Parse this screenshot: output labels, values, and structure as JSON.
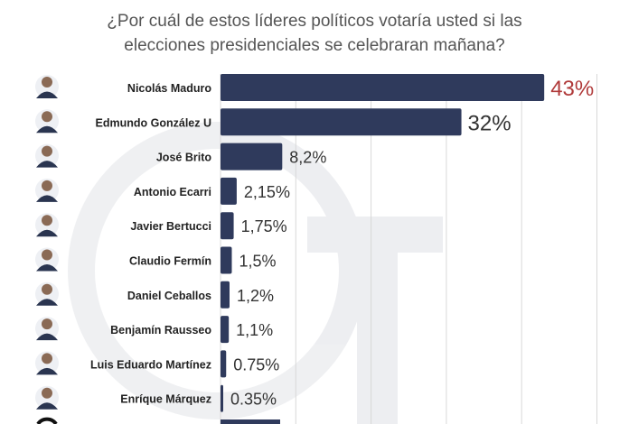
{
  "chart_data": {
    "type": "bar",
    "orientation": "horizontal",
    "title": "¿Por cuál de estos líderes políticos votaría usted si las elecciones presidenciales se celebraran mañana?",
    "title_lines": [
      "¿Por cuál de estos líderes políticos votaría usted si las",
      "elecciones presidenciales se celebraran mañana?"
    ],
    "categories": [
      "Nicolás Maduro",
      "Edmundo González U",
      "José Brito",
      "Antonio Ecarri",
      "Javier Bertucci",
      "Claudio Fermín",
      "Daniel Ceballos",
      "Benjamín Rausseo",
      "Luis Eduardo Martínez",
      "Enríque Márquez"
    ],
    "values": [
      43,
      32,
      8.2,
      2.15,
      1.75,
      1.5,
      1.2,
      1.1,
      0.75,
      0.35
    ],
    "labels": [
      "43%",
      "32%",
      "8,2%",
      "2,15%",
      "1,75%",
      "1,5%",
      "1,2%",
      "1,1%",
      "0.75%",
      "0.35%"
    ],
    "xlim": [
      0,
      50
    ],
    "grid": true,
    "xlabel": "",
    "ylabel": "",
    "colors": {
      "bar": "#2f3a5c",
      "highlight_label": "#b03a3a",
      "label": "#333333",
      "grid": "#d8d8d8"
    }
  }
}
